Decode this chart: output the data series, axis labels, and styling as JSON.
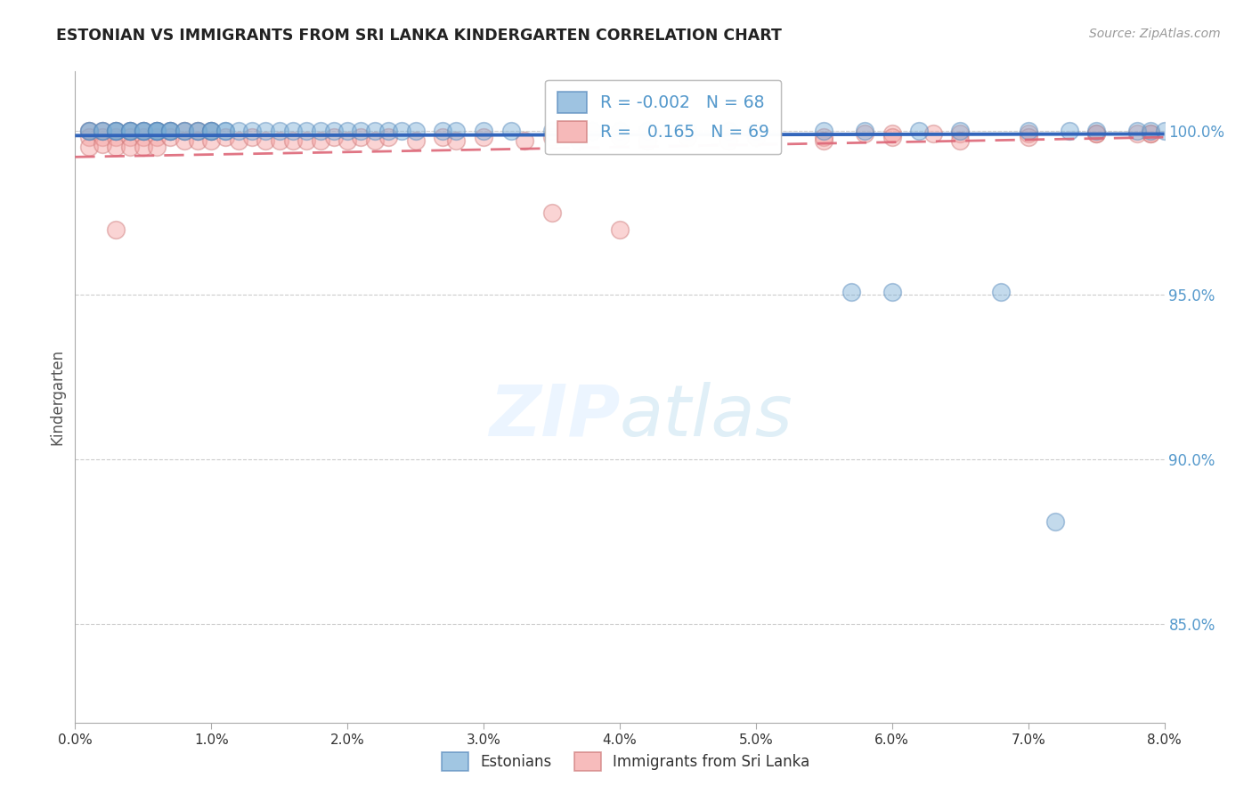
{
  "title": "ESTONIAN VS IMMIGRANTS FROM SRI LANKA KINDERGARTEN CORRELATION CHART",
  "source": "Source: ZipAtlas.com",
  "ylabel": "Kindergarten",
  "xmin": 0.0,
  "xmax": 0.08,
  "ymin": 0.82,
  "ymax": 1.018,
  "yticks": [
    0.85,
    0.9,
    0.95,
    1.0
  ],
  "ytick_labels": [
    "85.0%",
    "90.0%",
    "95.0%",
    "100.0%"
  ],
  "xticks": [
    0.0,
    0.01,
    0.02,
    0.03,
    0.04,
    0.05,
    0.06,
    0.07,
    0.08
  ],
  "xtick_labels": [
    "0.0%",
    "1.0%",
    "2.0%",
    "3.0%",
    "4.0%",
    "5.0%",
    "6.0%",
    "7.0%",
    "8.0%"
  ],
  "legend_r_blue": "-0.002",
  "legend_n_blue": "68",
  "legend_r_pink": "0.165",
  "legend_n_pink": "69",
  "blue_color": "#7aaed6",
  "pink_color": "#f4a0a0",
  "blue_edge_color": "#5588bb",
  "pink_edge_color": "#cc7777",
  "blue_line_color": "#3366bb",
  "pink_line_color": "#dd6677",
  "watermark_color": "#ddeeff",
  "ytick_color": "#5599cc",
  "grid_color": "#cccccc",
  "blue_scatter_x": [
    0.001,
    0.001,
    0.002,
    0.002,
    0.003,
    0.003,
    0.003,
    0.004,
    0.004,
    0.004,
    0.005,
    0.005,
    0.005,
    0.006,
    0.006,
    0.006,
    0.006,
    0.007,
    0.007,
    0.007,
    0.008,
    0.008,
    0.009,
    0.009,
    0.01,
    0.01,
    0.01,
    0.011,
    0.011,
    0.012,
    0.013,
    0.014,
    0.015,
    0.016,
    0.017,
    0.018,
    0.019,
    0.02,
    0.021,
    0.022,
    0.023,
    0.024,
    0.025,
    0.027,
    0.028,
    0.03,
    0.032,
    0.035,
    0.038,
    0.04,
    0.042,
    0.045,
    0.048,
    0.05,
    0.055,
    0.058,
    0.062,
    0.065,
    0.07,
    0.073,
    0.075,
    0.078,
    0.079,
    0.08,
    0.057,
    0.06,
    0.068,
    0.072
  ],
  "blue_scatter_y": [
    1.0,
    1.0,
    1.0,
    1.0,
    1.0,
    1.0,
    1.0,
    1.0,
    1.0,
    1.0,
    1.0,
    1.0,
    1.0,
    1.0,
    1.0,
    1.0,
    1.0,
    1.0,
    1.0,
    1.0,
    1.0,
    1.0,
    1.0,
    1.0,
    1.0,
    1.0,
    1.0,
    1.0,
    1.0,
    1.0,
    1.0,
    1.0,
    1.0,
    1.0,
    1.0,
    1.0,
    1.0,
    1.0,
    1.0,
    1.0,
    1.0,
    1.0,
    1.0,
    1.0,
    1.0,
    1.0,
    1.0,
    1.0,
    1.0,
    1.0,
    1.0,
    1.0,
    1.0,
    1.0,
    1.0,
    1.0,
    1.0,
    1.0,
    1.0,
    1.0,
    1.0,
    1.0,
    1.0,
    1.0,
    0.951,
    0.951,
    0.951,
    0.881
  ],
  "pink_scatter_x": [
    0.001,
    0.001,
    0.001,
    0.002,
    0.002,
    0.002,
    0.003,
    0.003,
    0.003,
    0.004,
    0.004,
    0.004,
    0.005,
    0.005,
    0.005,
    0.006,
    0.006,
    0.006,
    0.007,
    0.007,
    0.008,
    0.008,
    0.009,
    0.009,
    0.01,
    0.01,
    0.011,
    0.012,
    0.013,
    0.014,
    0.015,
    0.016,
    0.017,
    0.018,
    0.019,
    0.02,
    0.021,
    0.022,
    0.023,
    0.025,
    0.027,
    0.028,
    0.03,
    0.033,
    0.035,
    0.037,
    0.04,
    0.042,
    0.045,
    0.048,
    0.05,
    0.055,
    0.058,
    0.06,
    0.063,
    0.065,
    0.07,
    0.075,
    0.078,
    0.079,
    0.035,
    0.04,
    0.055,
    0.06,
    0.065,
    0.07,
    0.075,
    0.079,
    0.003
  ],
  "pink_scatter_y": [
    1.0,
    0.998,
    0.995,
    1.0,
    0.998,
    0.996,
    1.0,
    0.998,
    0.995,
    1.0,
    0.998,
    0.995,
    1.0,
    0.998,
    0.995,
    1.0,
    0.998,
    0.995,
    1.0,
    0.998,
    1.0,
    0.997,
    1.0,
    0.997,
    1.0,
    0.997,
    0.998,
    0.997,
    0.998,
    0.997,
    0.997,
    0.997,
    0.997,
    0.997,
    0.998,
    0.997,
    0.998,
    0.997,
    0.998,
    0.997,
    0.998,
    0.997,
    0.998,
    0.997,
    0.998,
    0.997,
    0.998,
    0.997,
    0.998,
    0.997,
    0.998,
    0.998,
    0.999,
    0.999,
    0.999,
    0.999,
    0.999,
    0.999,
    0.999,
    0.999,
    0.975,
    0.97,
    0.997,
    0.998,
    0.997,
    0.998,
    0.999,
    0.999,
    0.97
  ]
}
